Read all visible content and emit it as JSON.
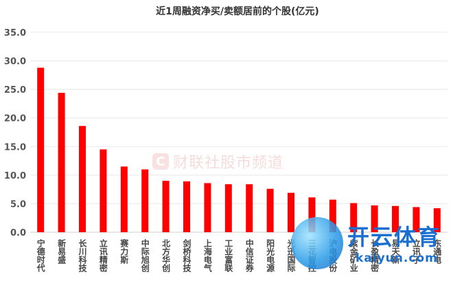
{
  "chart_data": {
    "type": "bar",
    "title": "近1周融资净买/卖额居前的个股(亿元)",
    "categories": [
      "宁德时代",
      "新易盛",
      "长川科技",
      "立讯精密",
      "赛力斯",
      "中际旭创",
      "北方华创",
      "剑桥科技",
      "上海电气",
      "工业富联",
      "中信证券",
      "阳光电源",
      "光迅国际",
      "三花智控",
      "沪电股份",
      "紫金矿业",
      "长盈精密",
      "易天新",
      "立讯子",
      "东通电"
    ],
    "values": [
      28.8,
      24.4,
      18.6,
      14.5,
      11.5,
      11.0,
      9.0,
      8.9,
      8.6,
      8.4,
      8.4,
      7.6,
      6.9,
      6.1,
      5.7,
      5.1,
      4.7,
      4.6,
      4.4,
      4.2
    ],
    "ylim": [
      0,
      35
    ],
    "yticks": [
      "0.0",
      "5.0",
      "10.0",
      "15.0",
      "20.0",
      "25.0",
      "30.0",
      "35.0"
    ],
    "grid": true,
    "bar_color": "#ff0000",
    "xlabel": "",
    "ylabel": ""
  },
  "watermark": {
    "logo": "C",
    "text": "财联社股市频道"
  },
  "brand_watermark": {
    "name": "开云体育",
    "sub": "kaiyun.com"
  }
}
